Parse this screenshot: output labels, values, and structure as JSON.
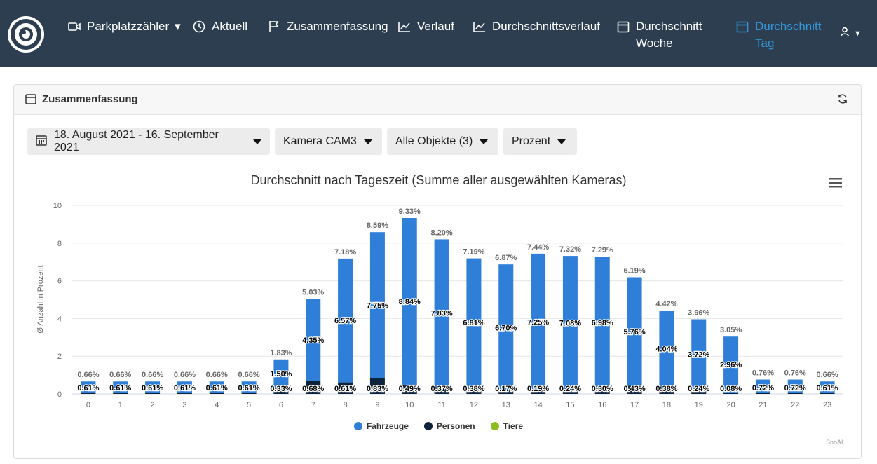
{
  "nav": {
    "items": [
      {
        "label": "Parkplatzzähler",
        "icon": "video-camera-icon"
      },
      {
        "label": "Aktuell",
        "icon": "clock-icon"
      },
      {
        "label": "Zusammenfassung",
        "icon": "flag-icon"
      },
      {
        "label": "Verlauf",
        "icon": "line-chart-icon"
      },
      {
        "label": "Durchschnittsverlauf",
        "icon": "line-chart-icon"
      },
      {
        "label": "Durchschnitt Woche",
        "icon": "calendar-icon"
      },
      {
        "label": "Durchschnitt Tag",
        "icon": "calendar-icon"
      }
    ],
    "active_color": "#3498db"
  },
  "card": {
    "title": "Zusammenfassung"
  },
  "filters": {
    "date_range": "18. August 2021 - 16. September 2021",
    "camera": "Kamera CAM3",
    "objects": "Alle Objekte (3)",
    "mode": "Prozent"
  },
  "credit": "SnoAI",
  "chart_data": {
    "type": "bar",
    "title": "Durchschnitt nach Tageszeit (Summe aller ausgewählten Kameras)",
    "ylabel": "Ø Anzahl in Prozent",
    "xlabel": "",
    "ylim": [
      0,
      10
    ],
    "yticks": [
      "0",
      "2",
      "4",
      "6",
      "8",
      "10"
    ],
    "categories": [
      "0",
      "1",
      "2",
      "3",
      "4",
      "5",
      "6",
      "7",
      "8",
      "9",
      "10",
      "11",
      "12",
      "13",
      "14",
      "15",
      "16",
      "17",
      "18",
      "19",
      "20",
      "21",
      "22",
      "23"
    ],
    "stacked": true,
    "totals": [
      "0.66%",
      "0.66%",
      "0.66%",
      "0.66%",
      "0.66%",
      "0.66%",
      "1.83%",
      "5.03%",
      "7.18%",
      "8.59%",
      "9.33%",
      "8.20%",
      "7.19%",
      "6.87%",
      "7.44%",
      "7.32%",
      "7.29%",
      "6.19%",
      "4.42%",
      "3.96%",
      "3.05%",
      "0.76%",
      "0.76%",
      "0.66%"
    ],
    "series": [
      {
        "name": "Fahrzeuge",
        "color": "#2f7ed8",
        "values": [
          0.61,
          0.61,
          0.61,
          0.61,
          0.61,
          0.61,
          1.5,
          4.35,
          6.57,
          7.75,
          8.84,
          7.83,
          6.81,
          6.7,
          7.25,
          7.08,
          6.98,
          5.76,
          4.04,
          3.72,
          2.96,
          0.72,
          0.72,
          0.61
        ]
      },
      {
        "name": "Personen",
        "color": "#0d233a",
        "values": [
          0.05,
          0.05,
          0.05,
          0.05,
          0.05,
          0.05,
          0.33,
          0.68,
          0.61,
          0.83,
          0.49,
          0.37,
          0.38,
          0.17,
          0.19,
          0.24,
          0.3,
          0.43,
          0.38,
          0.24,
          0.08,
          0.04,
          0.04,
          0.05
        ]
      },
      {
        "name": "Tiere",
        "color": "#8bbc21",
        "values": [
          0,
          0,
          0,
          0,
          0,
          0,
          0,
          0,
          0,
          0,
          0,
          0,
          0,
          0,
          0,
          0,
          0,
          0,
          0,
          0,
          0,
          0,
          0,
          0
        ]
      }
    ],
    "data_labels": {
      "Fahrzeuge": [
        "0.61%",
        "0.61%",
        "0.61%",
        "0.61%",
        "0.61%",
        "0.61%",
        "1.50%",
        "4.35%",
        "6.57%",
        "7.75%",
        "8.84%",
        "7.83%",
        "6.81%",
        "6.70%",
        "7.25%",
        "7.08%",
        "6.98%",
        "5.76%",
        "4.04%",
        "3.72%",
        "2.96%",
        "0.72%",
        "0.72%",
        "0.61%"
      ],
      "Personen": [
        "",
        "",
        "",
        "",
        "",
        "",
        "0.33%",
        "0.68%",
        "0.61%",
        "0.83%",
        "0.49%",
        "0.37%",
        "0.38%",
        "0.17%",
        "0.19%",
        "0.24%",
        "0.30%",
        "0.43%",
        "0.38%",
        "0.24%",
        "0.08%",
        "",
        "",
        ""
      ]
    }
  }
}
